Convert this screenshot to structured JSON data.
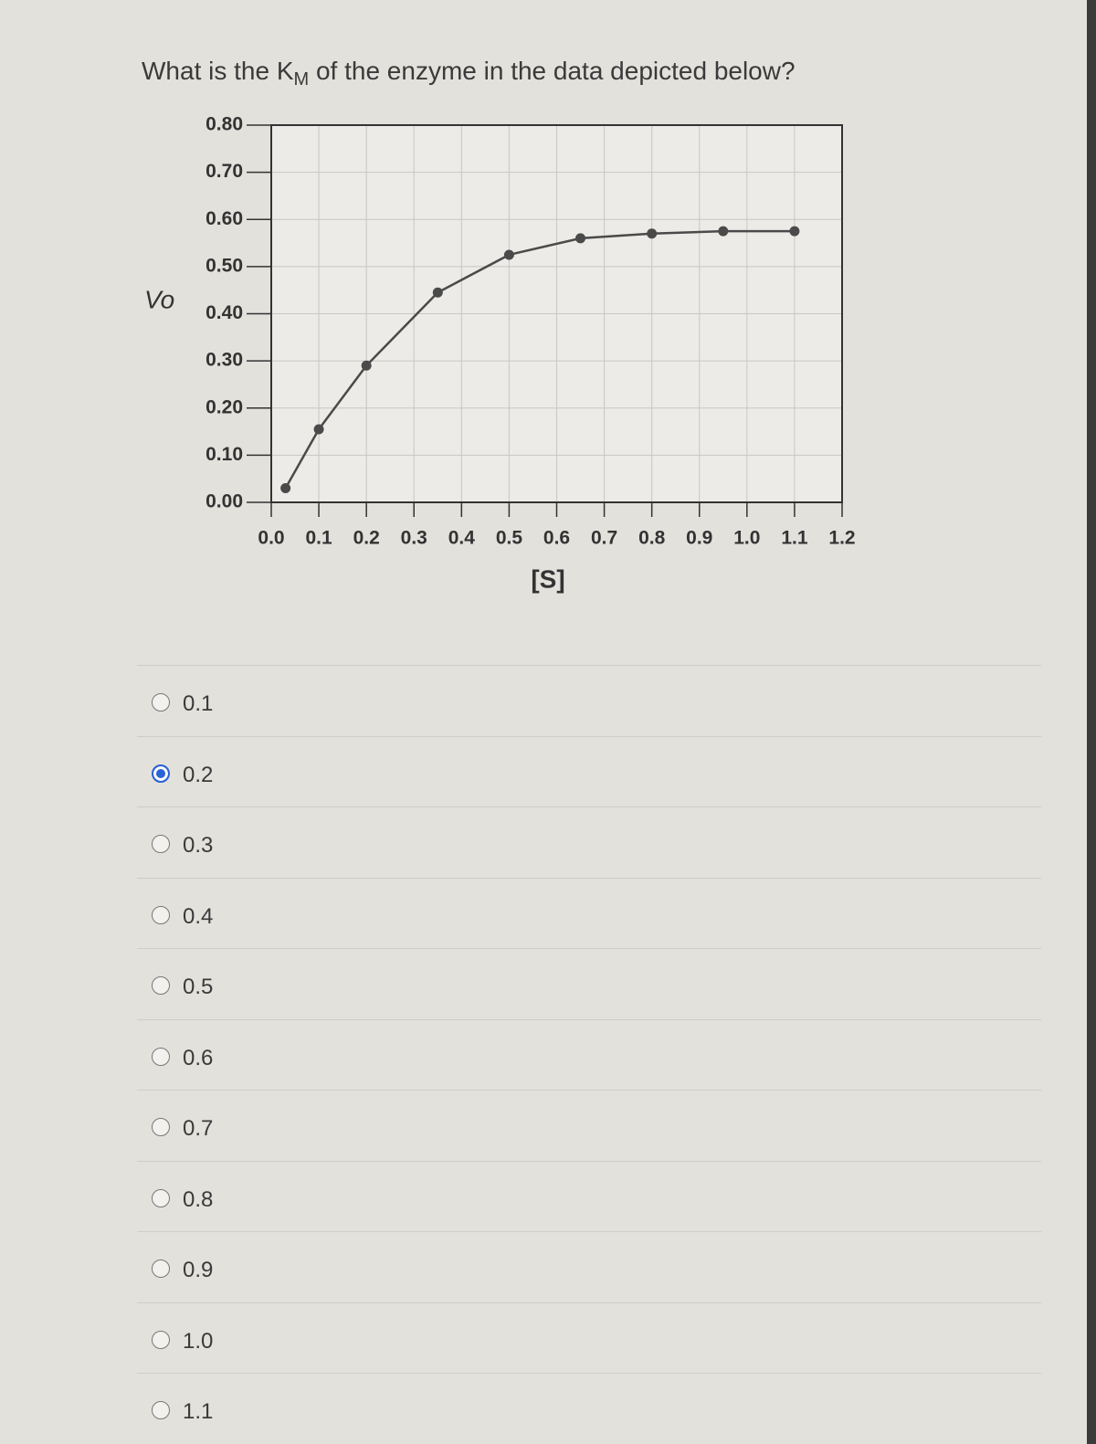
{
  "question": {
    "before": "What is the K",
    "sub": "M",
    "after": " of the enzyme in the data depicted below?"
  },
  "chart_data": {
    "type": "line",
    "ylabel": "Vo",
    "xlabel": "[S]",
    "x": [
      0.03,
      0.1,
      0.2,
      0.35,
      0.5,
      0.65,
      0.8,
      0.95,
      1.1
    ],
    "values": [
      0.03,
      0.155,
      0.29,
      0.445,
      0.525,
      0.56,
      0.57,
      0.575,
      0.575
    ],
    "color": "#4a4a4a",
    "xlim": [
      0,
      1.2
    ],
    "ylim": [
      0,
      0.8
    ],
    "xticks": [
      {
        "value": 0,
        "label": "0.0"
      },
      {
        "value": 0.1,
        "label": "0.1"
      },
      {
        "value": 0.2,
        "label": "0.2"
      },
      {
        "value": 0.3,
        "label": "0.3"
      },
      {
        "value": 0.4,
        "label": "0.4"
      },
      {
        "value": 0.5,
        "label": "0.5"
      },
      {
        "value": 0.6,
        "label": "0.6"
      },
      {
        "value": 0.7,
        "label": "0.7"
      },
      {
        "value": 0.8,
        "label": "0.8"
      },
      {
        "value": 0.9,
        "label": "0.9"
      },
      {
        "value": 1,
        "label": "1.0"
      },
      {
        "value": 1.1,
        "label": "1.1"
      },
      {
        "value": 1.2,
        "label": "1.2"
      }
    ],
    "yticks": [
      {
        "value": 0,
        "label": "0.00"
      },
      {
        "value": 0.1,
        "label": "0.10"
      },
      {
        "value": 0.2,
        "label": "0.20"
      },
      {
        "value": 0.3,
        "label": "0.30"
      },
      {
        "value": 0.4,
        "label": "0.40"
      },
      {
        "value": 0.5,
        "label": "0.50"
      },
      {
        "value": 0.6,
        "label": "0.60"
      },
      {
        "value": 0.7,
        "label": "0.70"
      },
      {
        "value": 0.8,
        "label": "0.80"
      }
    ],
    "grid": true
  },
  "options": [
    "0.1",
    "0.2",
    "0.3",
    "0.4",
    "0.5",
    "0.6",
    "0.7",
    "0.8",
    "0.9",
    "1.0",
    "1.1"
  ],
  "selected": 1
}
